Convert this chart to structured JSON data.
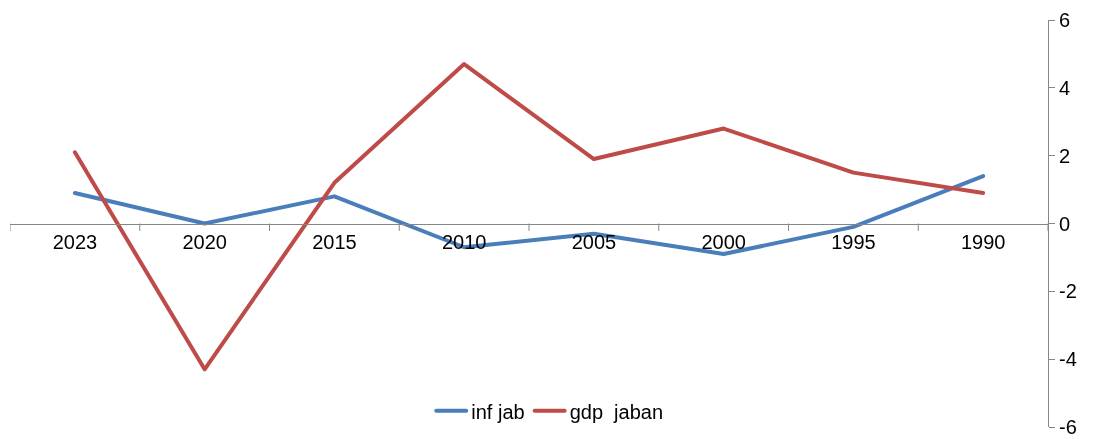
{
  "chart_data": {
    "type": "line",
    "categories": [
      "2023",
      "2020",
      "2015",
      "2010",
      "2005",
      "2000",
      "1995",
      "1990"
    ],
    "series": [
      {
        "name": "inf jab",
        "color": "#4a7ebb",
        "values": [
          0.9,
          0,
          0.8,
          -0.7,
          -0.3,
          -0.9,
          -0.1,
          1.4
        ]
      },
      {
        "name": "gdp  jaban",
        "color": "#be4b48",
        "values": [
          2.1,
          -4.3,
          1.2,
          4.7,
          1.9,
          2.8,
          1.5,
          0.9
        ]
      }
    ],
    "ylim": [
      -6,
      6
    ],
    "yticks": [
      -6,
      -4,
      -2,
      0,
      2,
      4,
      6
    ],
    "grid": false,
    "legend": "bottom",
    "marker": "none",
    "line_style": "solid"
  }
}
